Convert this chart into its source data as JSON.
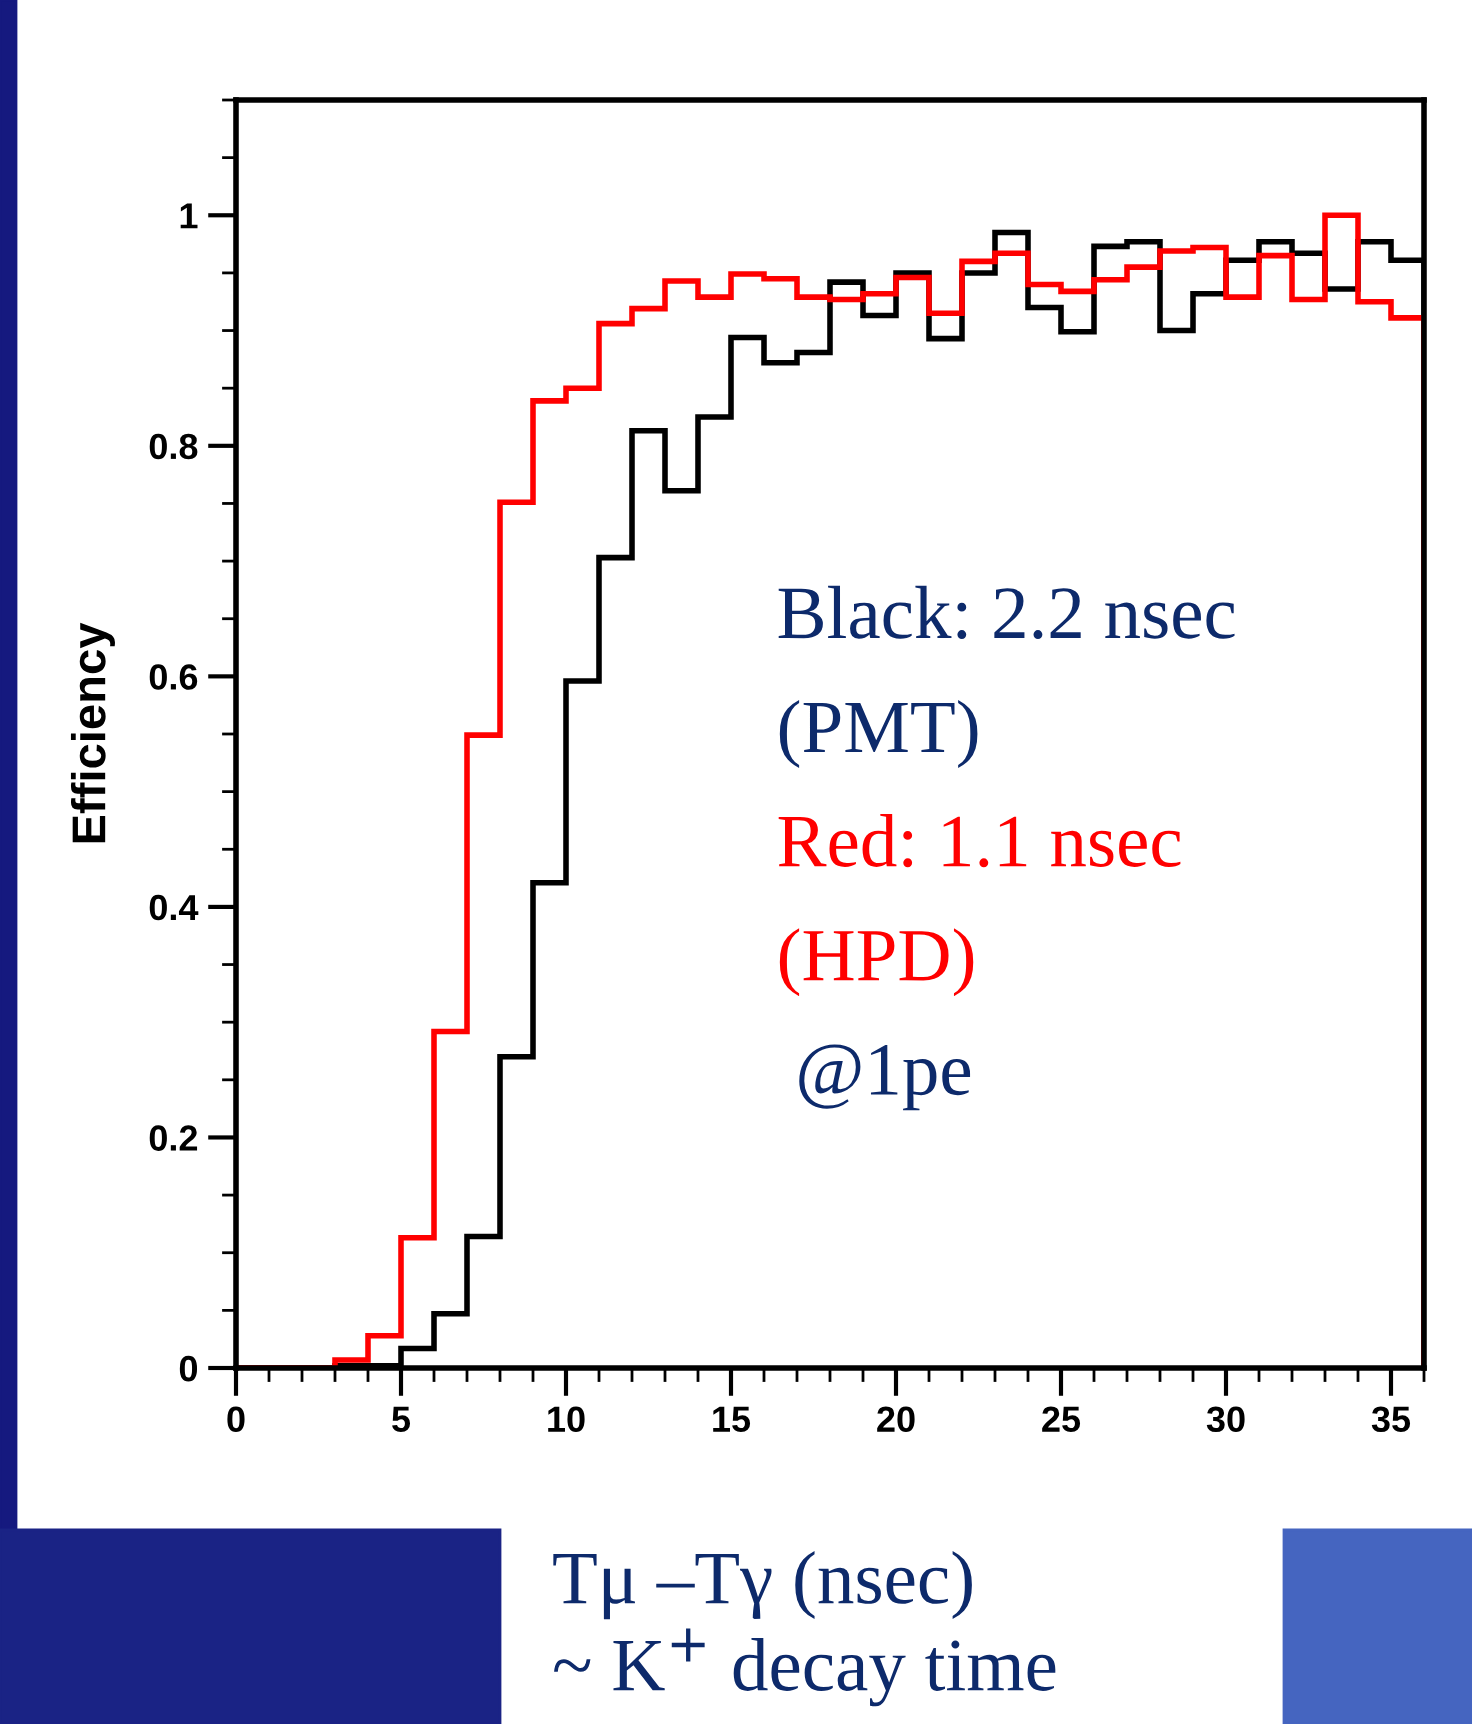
{
  "chart_data": {
    "type": "histogram",
    "xlabel": "Tμ –Tγ (nsec)\n~ K$^{+}$ decay time",
    "ylabel": "Efficiency",
    "bins": [
      0,
      1,
      2,
      3,
      4,
      5,
      6,
      7,
      8,
      9,
      10,
      11,
      12,
      13,
      14,
      15,
      16,
      17,
      18,
      19,
      20,
      21,
      22,
      23,
      24,
      25,
      26,
      27,
      28,
      29,
      30,
      31,
      32,
      33,
      34,
      35,
      36
    ],
    "series": [
      {
        "color": "#000000",
        "values": [
          0,
          0,
          0,
          0.002,
          0.002,
          0.017,
          0.047,
          0.114,
          0.27,
          0.421,
          0.596,
          0.703,
          0.813,
          0.761,
          0.825,
          0.894,
          0.872,
          0.881,
          0.942,
          0.913,
          0.95,
          0.893,
          0.95,
          0.985,
          0.92,
          0.899,
          0.973,
          0.977,
          0.9,
          0.932,
          0.961,
          0.977,
          0.967,
          0.936,
          0.977,
          0.961
        ]
      },
      {
        "color": "#ff0000",
        "values": [
          0,
          0,
          0,
          0.007,
          0.028,
          0.113,
          0.292,
          0.549,
          0.751,
          0.839,
          0.85,
          0.906,
          0.919,
          0.943,
          0.929,
          0.949,
          0.945,
          0.929,
          0.927,
          0.932,
          0.946,
          0.915,
          0.96,
          0.967,
          0.94,
          0.934,
          0.944,
          0.955,
          0.969,
          0.972,
          0.929,
          0.965,
          0.927,
          1.0,
          0.925,
          0.911
        ]
      }
    ],
    "annotations": [
      "Black: 2.2 nsec",
      "(PMT)",
      "Red: 1.1 nsec",
      "(HPD)",
      " @1pe"
    ],
    "xlim": [
      0,
      36
    ],
    "ylim": [
      0,
      1.1
    ],
    "xticks": [
      0,
      5,
      10,
      15,
      20,
      25,
      30,
      35
    ],
    "yticks": [
      0,
      0.2,
      0.4,
      0.6,
      0.8,
      1
    ],
    "grid": false,
    "legend": false
  }
}
